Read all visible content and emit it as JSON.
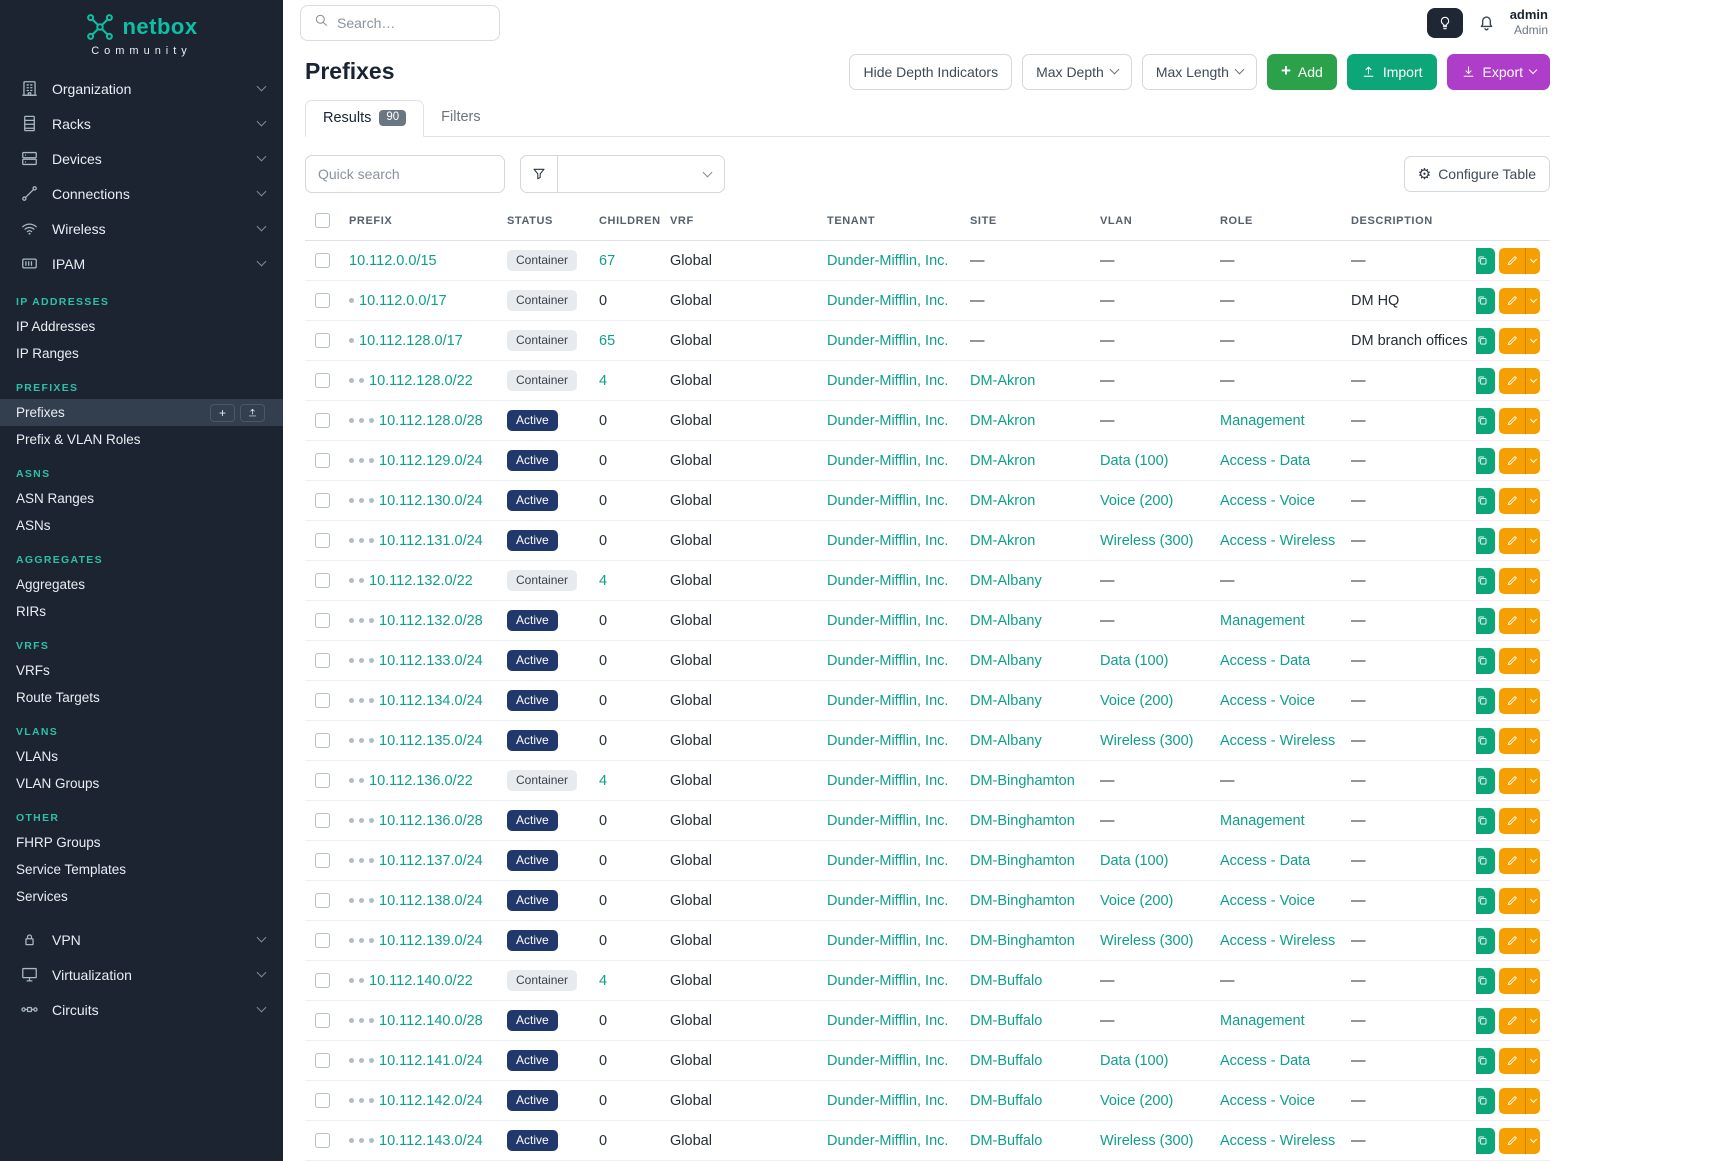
{
  "colors": {
    "sidebar_bg": "#1b2430",
    "brand_teal": "#0ebfa5",
    "heading_teal": "#2fbfa9",
    "link_teal": "#0e9f8a",
    "active_badge": "#20386b",
    "add_green": "#2ba149",
    "import_teal": "#0ca678",
    "export_purple": "#ae3ec9",
    "edit_orange": "#f59f00"
  },
  "sidebar": {
    "brand": {
      "name": "netbox",
      "subtitle": "Community"
    },
    "top_groups": [
      {
        "label": "Organization",
        "icon": "building-icon"
      },
      {
        "label": "Racks",
        "icon": "rack-icon"
      },
      {
        "label": "Devices",
        "icon": "devices-icon"
      },
      {
        "label": "Connections",
        "icon": "connections-icon"
      },
      {
        "label": "Wireless",
        "icon": "wifi-icon"
      },
      {
        "label": "IPAM",
        "icon": "ipam-icon"
      }
    ],
    "sections": [
      {
        "heading": "IP Addresses",
        "items": [
          {
            "label": "IP Addresses"
          },
          {
            "label": "IP Ranges"
          }
        ]
      },
      {
        "heading": "Prefixes",
        "items": [
          {
            "label": "Prefixes",
            "active": true,
            "actions": [
              "add",
              "import"
            ]
          },
          {
            "label": "Prefix & VLAN Roles"
          }
        ]
      },
      {
        "heading": "ASNs",
        "items": [
          {
            "label": "ASN Ranges"
          },
          {
            "label": "ASNs"
          }
        ]
      },
      {
        "heading": "Aggregates",
        "items": [
          {
            "label": "Aggregates"
          },
          {
            "label": "RIRs"
          }
        ]
      },
      {
        "heading": "VRFs",
        "items": [
          {
            "label": "VRFs"
          },
          {
            "label": "Route Targets"
          }
        ]
      },
      {
        "heading": "VLANs",
        "items": [
          {
            "label": "VLANs"
          },
          {
            "label": "VLAN Groups"
          }
        ]
      },
      {
        "heading": "Other",
        "items": [
          {
            "label": "FHRP Groups"
          },
          {
            "label": "Service Templates"
          },
          {
            "label": "Services"
          }
        ]
      }
    ],
    "bottom_groups": [
      {
        "label": "VPN",
        "icon": "vpn-icon"
      },
      {
        "label": "Virtualization",
        "icon": "virtualization-icon"
      },
      {
        "label": "Circuits",
        "icon": "circuits-icon"
      }
    ]
  },
  "topbar": {
    "search_placeholder": "Search…",
    "user": {
      "name": "admin",
      "role": "Admin"
    }
  },
  "page": {
    "title": "Prefixes",
    "controls": {
      "hide_depth": "Hide Depth Indicators",
      "max_depth": "Max Depth",
      "max_length": "Max Length",
      "add": "Add",
      "import": "Import",
      "export": "Export"
    },
    "tabs": [
      {
        "label": "Results",
        "count": "90",
        "active": true
      },
      {
        "label": "Filters"
      }
    ],
    "quick_search_placeholder": "Quick search",
    "configure_table": "Configure Table"
  },
  "table": {
    "columns": [
      "Prefix",
      "Status",
      "Children",
      "VRF",
      "Tenant",
      "Site",
      "VLAN",
      "Role",
      "Description"
    ],
    "rows": [
      {
        "depth": 0,
        "prefix": "10.112.0.0/15",
        "status": "Container",
        "children": "67",
        "vrf": "Global",
        "tenant": "Dunder-Mifflin, Inc.",
        "site": "—",
        "vlan": "—",
        "role": "—",
        "description": "—"
      },
      {
        "depth": 1,
        "prefix": "10.112.0.0/17",
        "status": "Container",
        "children": "0",
        "vrf": "Global",
        "tenant": "Dunder-Mifflin, Inc.",
        "site": "—",
        "vlan": "—",
        "role": "—",
        "description": "DM HQ"
      },
      {
        "depth": 1,
        "prefix": "10.112.128.0/17",
        "status": "Container",
        "children": "65",
        "vrf": "Global",
        "tenant": "Dunder-Mifflin, Inc.",
        "site": "—",
        "vlan": "—",
        "role": "—",
        "description": "DM branch offices"
      },
      {
        "depth": 2,
        "prefix": "10.112.128.0/22",
        "status": "Container",
        "children": "4",
        "vrf": "Global",
        "tenant": "Dunder-Mifflin, Inc.",
        "site": "DM-Akron",
        "vlan": "—",
        "role": "—",
        "description": "—"
      },
      {
        "depth": 3,
        "prefix": "10.112.128.0/28",
        "status": "Active",
        "children": "0",
        "vrf": "Global",
        "tenant": "Dunder-Mifflin, Inc.",
        "site": "DM-Akron",
        "vlan": "—",
        "role": "Management",
        "description": "—"
      },
      {
        "depth": 3,
        "prefix": "10.112.129.0/24",
        "status": "Active",
        "children": "0",
        "vrf": "Global",
        "tenant": "Dunder-Mifflin, Inc.",
        "site": "DM-Akron",
        "vlan": "Data (100)",
        "role": "Access - Data",
        "description": "—"
      },
      {
        "depth": 3,
        "prefix": "10.112.130.0/24",
        "status": "Active",
        "children": "0",
        "vrf": "Global",
        "tenant": "Dunder-Mifflin, Inc.",
        "site": "DM-Akron",
        "vlan": "Voice (200)",
        "role": "Access - Voice",
        "description": "—"
      },
      {
        "depth": 3,
        "prefix": "10.112.131.0/24",
        "status": "Active",
        "children": "0",
        "vrf": "Global",
        "tenant": "Dunder-Mifflin, Inc.",
        "site": "DM-Akron",
        "vlan": "Wireless (300)",
        "role": "Access - Wireless",
        "description": "—"
      },
      {
        "depth": 2,
        "prefix": "10.112.132.0/22",
        "status": "Container",
        "children": "4",
        "vrf": "Global",
        "tenant": "Dunder-Mifflin, Inc.",
        "site": "DM-Albany",
        "vlan": "—",
        "role": "—",
        "description": "—"
      },
      {
        "depth": 3,
        "prefix": "10.112.132.0/28",
        "status": "Active",
        "children": "0",
        "vrf": "Global",
        "tenant": "Dunder-Mifflin, Inc.",
        "site": "DM-Albany",
        "vlan": "—",
        "role": "Management",
        "description": "—"
      },
      {
        "depth": 3,
        "prefix": "10.112.133.0/24",
        "status": "Active",
        "children": "0",
        "vrf": "Global",
        "tenant": "Dunder-Mifflin, Inc.",
        "site": "DM-Albany",
        "vlan": "Data (100)",
        "role": "Access - Data",
        "description": "—"
      },
      {
        "depth": 3,
        "prefix": "10.112.134.0/24",
        "status": "Active",
        "children": "0",
        "vrf": "Global",
        "tenant": "Dunder-Mifflin, Inc.",
        "site": "DM-Albany",
        "vlan": "Voice (200)",
        "role": "Access - Voice",
        "description": "—"
      },
      {
        "depth": 3,
        "prefix": "10.112.135.0/24",
        "status": "Active",
        "children": "0",
        "vrf": "Global",
        "tenant": "Dunder-Mifflin, Inc.",
        "site": "DM-Albany",
        "vlan": "Wireless (300)",
        "role": "Access - Wireless",
        "description": "—"
      },
      {
        "depth": 2,
        "prefix": "10.112.136.0/22",
        "status": "Container",
        "children": "4",
        "vrf": "Global",
        "tenant": "Dunder-Mifflin, Inc.",
        "site": "DM-Binghamton",
        "vlan": "—",
        "role": "—",
        "description": "—"
      },
      {
        "depth": 3,
        "prefix": "10.112.136.0/28",
        "status": "Active",
        "children": "0",
        "vrf": "Global",
        "tenant": "Dunder-Mifflin, Inc.",
        "site": "DM-Binghamton",
        "vlan": "—",
        "role": "Management",
        "description": "—"
      },
      {
        "depth": 3,
        "prefix": "10.112.137.0/24",
        "status": "Active",
        "children": "0",
        "vrf": "Global",
        "tenant": "Dunder-Mifflin, Inc.",
        "site": "DM-Binghamton",
        "vlan": "Data (100)",
        "role": "Access - Data",
        "description": "—"
      },
      {
        "depth": 3,
        "prefix": "10.112.138.0/24",
        "status": "Active",
        "children": "0",
        "vrf": "Global",
        "tenant": "Dunder-Mifflin, Inc.",
        "site": "DM-Binghamton",
        "vlan": "Voice (200)",
        "role": "Access - Voice",
        "description": "—"
      },
      {
        "depth": 3,
        "prefix": "10.112.139.0/24",
        "status": "Active",
        "children": "0",
        "vrf": "Global",
        "tenant": "Dunder-Mifflin, Inc.",
        "site": "DM-Binghamton",
        "vlan": "Wireless (300)",
        "role": "Access - Wireless",
        "description": "—"
      },
      {
        "depth": 2,
        "prefix": "10.112.140.0/22",
        "status": "Container",
        "children": "4",
        "vrf": "Global",
        "tenant": "Dunder-Mifflin, Inc.",
        "site": "DM-Buffalo",
        "vlan": "—",
        "role": "—",
        "description": "—"
      },
      {
        "depth": 3,
        "prefix": "10.112.140.0/28",
        "status": "Active",
        "children": "0",
        "vrf": "Global",
        "tenant": "Dunder-Mifflin, Inc.",
        "site": "DM-Buffalo",
        "vlan": "—",
        "role": "Management",
        "description": "—"
      },
      {
        "depth": 3,
        "prefix": "10.112.141.0/24",
        "status": "Active",
        "children": "0",
        "vrf": "Global",
        "tenant": "Dunder-Mifflin, Inc.",
        "site": "DM-Buffalo",
        "vlan": "Data (100)",
        "role": "Access - Data",
        "description": "—"
      },
      {
        "depth": 3,
        "prefix": "10.112.142.0/24",
        "status": "Active",
        "children": "0",
        "vrf": "Global",
        "tenant": "Dunder-Mifflin, Inc.",
        "site": "DM-Buffalo",
        "vlan": "Voice (200)",
        "role": "Access - Voice",
        "description": "—"
      },
      {
        "depth": 3,
        "prefix": "10.112.143.0/24",
        "status": "Active",
        "children": "0",
        "vrf": "Global",
        "tenant": "Dunder-Mifflin, Inc.",
        "site": "DM-Buffalo",
        "vlan": "Wireless (300)",
        "role": "Access - Wireless",
        "description": "—"
      }
    ]
  }
}
